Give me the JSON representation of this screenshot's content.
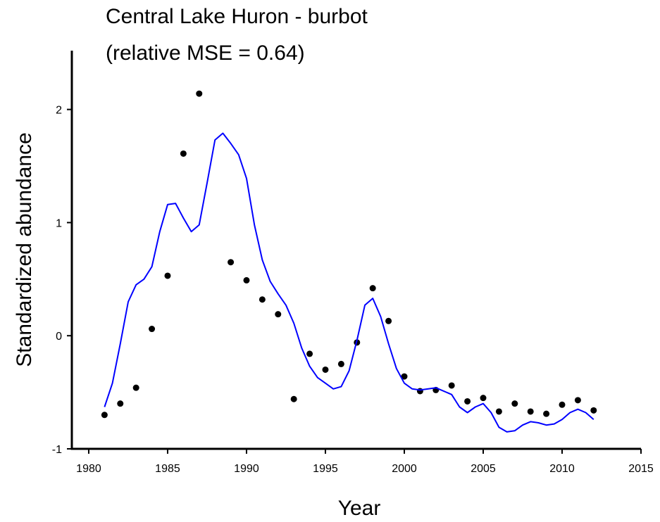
{
  "chart_data": {
    "type": "scatter",
    "title": [
      "Central Lake Huron - burbot",
      "(relative MSE = 0.64)"
    ],
    "x_label": "Year",
    "y_label": "Standardized abundance",
    "xlim": [
      1978.93,
      2015
    ],
    "ylim": [
      -1,
      2.52
    ],
    "xticks": [
      1980,
      1985,
      1990,
      1995,
      2000,
      2005,
      2010,
      2015
    ],
    "yticks": [
      -1,
      0,
      1,
      2
    ],
    "series": [
      {
        "mode": "markers",
        "color": "#000000",
        "x": [
          1981,
          1982,
          1983,
          1984,
          1985,
          1986,
          1987,
          1989,
          1990,
          1991,
          1992,
          1993,
          1994,
          1995,
          1996,
          1997,
          1998,
          1999,
          2000,
          2001,
          2002,
          2003,
          2004,
          2005,
          2006,
          2007,
          2008,
          2009,
          2010,
          2011,
          2012
        ],
        "values": [
          -0.7,
          -0.6,
          -0.46,
          0.06,
          0.53,
          1.61,
          2.14,
          0.65,
          0.49,
          0.32,
          0.19,
          -0.56,
          -0.16,
          -0.3,
          -0.25,
          -0.06,
          0.42,
          0.13,
          -0.36,
          -0.49,
          -0.48,
          -0.44,
          -0.58,
          -0.55,
          -0.67,
          -0.6,
          -0.67,
          -0.69,
          -0.61,
          -0.57,
          -0.66
        ]
      },
      {
        "mode": "line",
        "color": "#0000ff",
        "x": [
          1981,
          1981.5,
          1982,
          1982.5,
          1983,
          1983.5,
          1984,
          1984.5,
          1985,
          1985.5,
          1986,
          1986.5,
          1987,
          1987.5,
          1988,
          1988.5,
          1989,
          1989.5,
          1990,
          1990.5,
          1991,
          1991.5,
          1992,
          1992.5,
          1993,
          1993.5,
          1994,
          1994.5,
          1995,
          1995.5,
          1996,
          1996.5,
          1997,
          1997.5,
          1998,
          1998.5,
          1999,
          1999.5,
          2000,
          2000.5,
          2001,
          2002,
          2003,
          2003.5,
          2004,
          2004.5,
          2005,
          2005.5,
          2006,
          2006.5,
          2007,
          2007.5,
          2008,
          2008.5,
          2009,
          2009.5,
          2010,
          2010.5,
          2011,
          2011.5,
          2012
        ],
        "values": [
          -0.63,
          -0.42,
          -0.07,
          0.3,
          0.45,
          0.5,
          0.61,
          0.92,
          1.16,
          1.17,
          1.04,
          0.92,
          0.98,
          1.35,
          1.73,
          1.79,
          1.7,
          1.6,
          1.39,
          0.98,
          0.67,
          0.48,
          0.37,
          0.27,
          0.11,
          -0.11,
          -0.27,
          -0.37,
          -0.42,
          -0.47,
          -0.45,
          -0.31,
          -0.04,
          0.27,
          0.33,
          0.17,
          -0.07,
          -0.29,
          -0.42,
          -0.47,
          -0.48,
          -0.46,
          -0.52,
          -0.63,
          -0.68,
          -0.63,
          -0.6,
          -0.68,
          -0.81,
          -0.85,
          -0.84,
          -0.79,
          -0.76,
          -0.77,
          -0.79,
          -0.78,
          -0.74,
          -0.68,
          -0.65,
          -0.68,
          -0.74
        ]
      }
    ]
  }
}
